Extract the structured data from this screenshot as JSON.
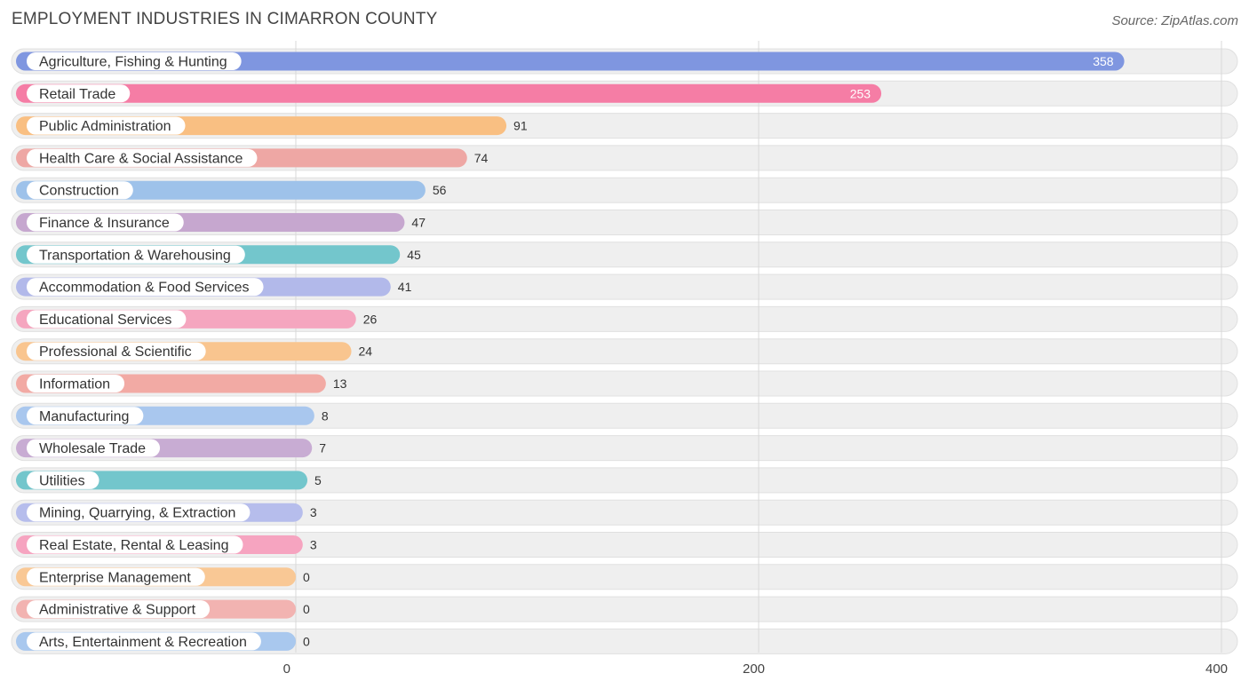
{
  "chart_data": {
    "type": "bar",
    "orientation": "horizontal",
    "title": "EMPLOYMENT INDUSTRIES IN CIMARRON COUNTY",
    "source": "Source: ZipAtlas.com",
    "xlim": [
      0,
      400
    ],
    "ticks": [
      0,
      200,
      400
    ],
    "grid": true,
    "categories": [
      "Agriculture, Fishing & Hunting",
      "Retail Trade",
      "Public Administration",
      "Health Care & Social Assistance",
      "Construction",
      "Finance & Insurance",
      "Transportation & Warehousing",
      "Accommodation & Food Services",
      "Educational Services",
      "Professional & Scientific",
      "Information",
      "Manufacturing",
      "Wholesale Trade",
      "Utilities",
      "Mining, Quarrying, & Extraction",
      "Real Estate, Rental & Leasing",
      "Enterprise Management",
      "Administrative & Support",
      "Arts, Entertainment & Recreation"
    ],
    "values": [
      358,
      253,
      91,
      74,
      56,
      47,
      45,
      41,
      26,
      24,
      13,
      8,
      7,
      5,
      3,
      3,
      0,
      0,
      0
    ],
    "colors": [
      "#7f96e0",
      "#f57da5",
      "#f9bf82",
      "#eea7a4",
      "#9ec2ea",
      "#c6a7cf",
      "#73c6cc",
      "#b2b9ea",
      "#f5a6bf",
      "#f9c58f",
      "#f2aaa4",
      "#a9c7ee",
      "#c8acd3",
      "#73c6cc",
      "#b6bdec",
      "#f6a4c0",
      "#f9c895",
      "#f2b3b1",
      "#a9c8ee"
    ]
  }
}
